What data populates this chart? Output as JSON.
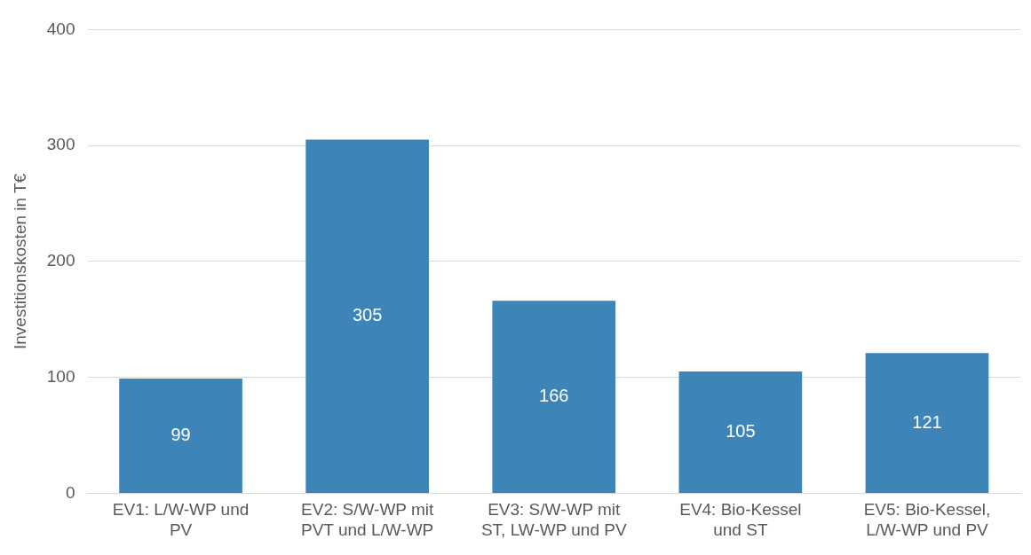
{
  "chart_data": {
    "type": "bar",
    "ylabel": "Investitionskosten in T€",
    "categories": [
      "EV1: L/W-WP und PV",
      "EV2: S/W-WP mit PVT und L/W-WP",
      "EV3: S/W-WP mit ST, LW-WP und PV",
      "EV4: Bio-Kessel und ST",
      "EV5: Bio-Kessel, L/W-WP und PV"
    ],
    "values": [
      99,
      305,
      166,
      105,
      121
    ],
    "color": "#3d85b8",
    "ylim": [
      0,
      400
    ],
    "yticks": [
      0,
      100,
      200,
      300,
      400
    ],
    "grid": "y",
    "data_labels": true,
    "legend": false
  }
}
